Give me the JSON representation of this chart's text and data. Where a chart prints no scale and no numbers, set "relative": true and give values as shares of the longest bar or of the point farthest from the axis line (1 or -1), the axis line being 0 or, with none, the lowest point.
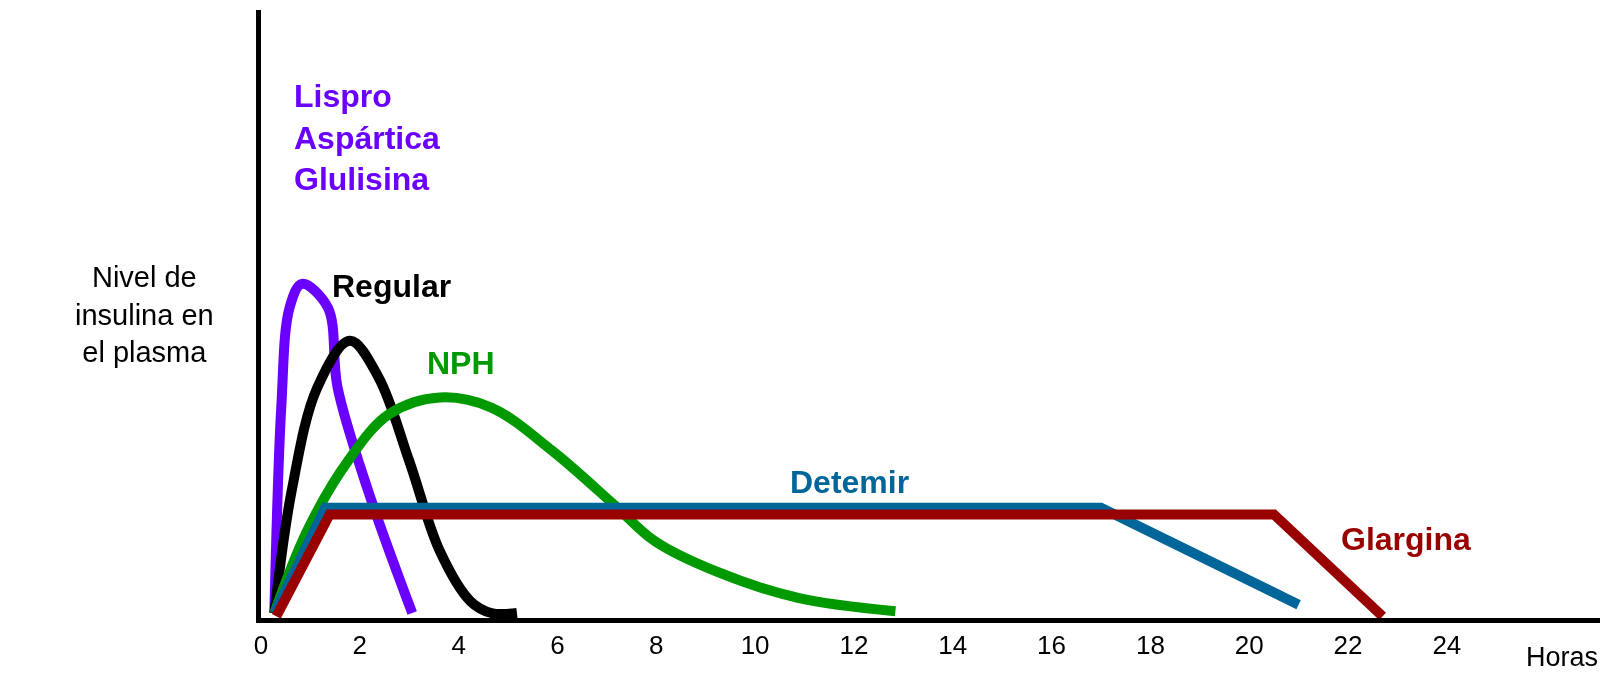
{
  "chart_data": {
    "type": "line",
    "relative": true,
    "xlabel": "Horas",
    "ylabel": "Nivel de\ninsulina en\nel plasma",
    "xlim": [
      0,
      27.1
    ],
    "xticks": [
      0,
      2,
      4,
      6,
      8,
      10,
      12,
      14,
      16,
      18,
      20,
      22,
      24
    ],
    "legend": false,
    "marker": "none",
    "line_style": "solid",
    "series": [
      {
        "name": "Lispro\nAspártica\nGlulisina",
        "color": "#6a00ff",
        "x": [
          0.27,
          0.41,
          0.58,
          0.83,
          1.35,
          1.55,
          2.17,
          3.06
        ],
        "values": [
          0.015,
          0.63,
          0.93,
          1.0,
          0.93,
          0.69,
          0.38,
          0.015
        ]
      },
      {
        "name": "Regular",
        "color": "#000000",
        "x": [
          0.27,
          0.62,
          1.14,
          1.8,
          2.38,
          3.0,
          3.62,
          4.24,
          4.66,
          5.18
        ],
        "values": [
          0.015,
          0.38,
          0.69,
          0.83,
          0.72,
          0.47,
          0.2,
          0.05,
          0.015,
          0.015
        ]
      },
      {
        "name": "NPH",
        "color": "#009900",
        "x": [
          0.27,
          0.93,
          1.76,
          2.59,
          3.62,
          4.66,
          5.9,
          7.14,
          7.97,
          9.2,
          10.87,
          12.84
        ],
        "values": [
          0.015,
          0.26,
          0.47,
          0.61,
          0.66,
          0.63,
          0.5,
          0.34,
          0.23,
          0.14,
          0.06,
          0.02
        ]
      },
      {
        "name": "Detemir",
        "color": "#006699",
        "x": [
          0.27,
          1.3,
          17.0,
          21.0
        ],
        "values": [
          0.015,
          0.33,
          0.33,
          0.04
        ]
      },
      {
        "name": "Glargina",
        "color": "#990000",
        "x": [
          0.31,
          1.39,
          20.5,
          22.7
        ],
        "values": [
          0.005,
          0.31,
          0.31,
          0.005
        ]
      }
    ]
  }
}
